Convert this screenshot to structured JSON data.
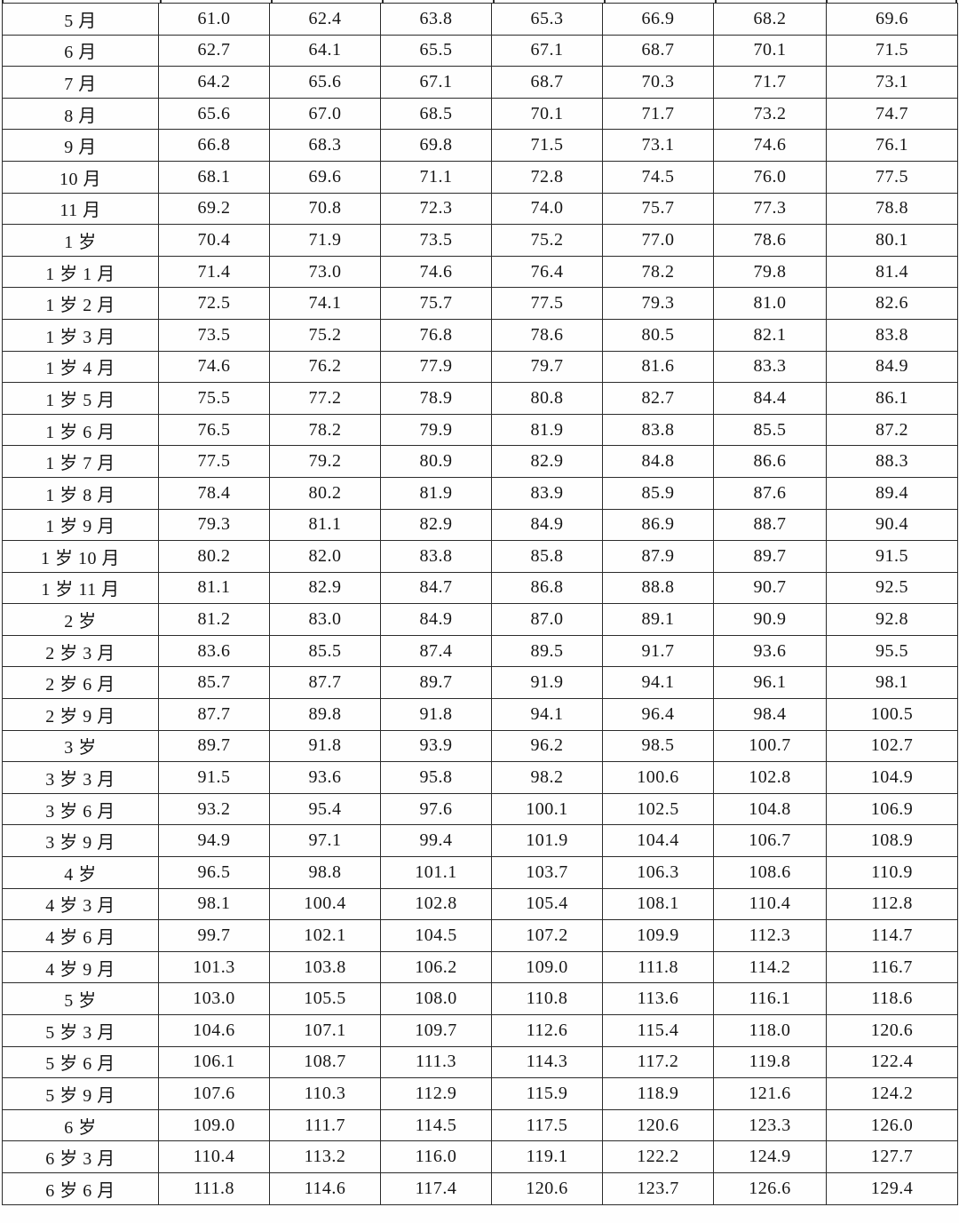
{
  "page": {
    "background_color": "#fefefe",
    "text_color": "#161616",
    "border_color": "#2b2b2b"
  },
  "table": {
    "description": "child growth standard table (age vs seven height-length percentile columns, cm), header rows cropped out of view",
    "rows": [
      {
        "label": "5 月",
        "values": [
          "61.0",
          "62.4",
          "63.8",
          "65.3",
          "66.9",
          "68.2",
          "69.6"
        ]
      },
      {
        "label": "6 月",
        "values": [
          "62.7",
          "64.1",
          "65.5",
          "67.1",
          "68.7",
          "70.1",
          "71.5"
        ]
      },
      {
        "label": "7 月",
        "values": [
          "64.2",
          "65.6",
          "67.1",
          "68.7",
          "70.3",
          "71.7",
          "73.1"
        ]
      },
      {
        "label": "8 月",
        "values": [
          "65.6",
          "67.0",
          "68.5",
          "70.1",
          "71.7",
          "73.2",
          "74.7"
        ]
      },
      {
        "label": "9 月",
        "values": [
          "66.8",
          "68.3",
          "69.8",
          "71.5",
          "73.1",
          "74.6",
          "76.1"
        ]
      },
      {
        "label": "10 月",
        "values": [
          "68.1",
          "69.6",
          "71.1",
          "72.8",
          "74.5",
          "76.0",
          "77.5"
        ]
      },
      {
        "label": "11 月",
        "values": [
          "69.2",
          "70.8",
          "72.3",
          "74.0",
          "75.7",
          "77.3",
          "78.8"
        ]
      },
      {
        "label": "1 岁",
        "values": [
          "70.4",
          "71.9",
          "73.5",
          "75.2",
          "77.0",
          "78.6",
          "80.1"
        ]
      },
      {
        "label": "1 岁 1 月",
        "values": [
          "71.4",
          "73.0",
          "74.6",
          "76.4",
          "78.2",
          "79.8",
          "81.4"
        ]
      },
      {
        "label": "1 岁 2 月",
        "values": [
          "72.5",
          "74.1",
          "75.7",
          "77.5",
          "79.3",
          "81.0",
          "82.6"
        ]
      },
      {
        "label": "1 岁 3 月",
        "values": [
          "73.5",
          "75.2",
          "76.8",
          "78.6",
          "80.5",
          "82.1",
          "83.8"
        ]
      },
      {
        "label": "1 岁 4 月",
        "values": [
          "74.6",
          "76.2",
          "77.9",
          "79.7",
          "81.6",
          "83.3",
          "84.9"
        ]
      },
      {
        "label": "1 岁 5 月",
        "values": [
          "75.5",
          "77.2",
          "78.9",
          "80.8",
          "82.7",
          "84.4",
          "86.1"
        ]
      },
      {
        "label": "1 岁 6 月",
        "values": [
          "76.5",
          "78.2",
          "79.9",
          "81.9",
          "83.8",
          "85.5",
          "87.2"
        ]
      },
      {
        "label": "1 岁 7 月",
        "values": [
          "77.5",
          "79.2",
          "80.9",
          "82.9",
          "84.8",
          "86.6",
          "88.3"
        ]
      },
      {
        "label": "1 岁 8 月",
        "values": [
          "78.4",
          "80.2",
          "81.9",
          "83.9",
          "85.9",
          "87.6",
          "89.4"
        ]
      },
      {
        "label": "1 岁 9 月",
        "values": [
          "79.3",
          "81.1",
          "82.9",
          "84.9",
          "86.9",
          "88.7",
          "90.4"
        ]
      },
      {
        "label": "1 岁 10 月",
        "values": [
          "80.2",
          "82.0",
          "83.8",
          "85.8",
          "87.9",
          "89.7",
          "91.5"
        ]
      },
      {
        "label": "1 岁 11 月",
        "values": [
          "81.1",
          "82.9",
          "84.7",
          "86.8",
          "88.8",
          "90.7",
          "92.5"
        ]
      },
      {
        "label": "2 岁",
        "values": [
          "81.2",
          "83.0",
          "84.9",
          "87.0",
          "89.1",
          "90.9",
          "92.8"
        ]
      },
      {
        "label": "2 岁 3 月",
        "values": [
          "83.6",
          "85.5",
          "87.4",
          "89.5",
          "91.7",
          "93.6",
          "95.5"
        ]
      },
      {
        "label": "2 岁 6 月",
        "values": [
          "85.7",
          "87.7",
          "89.7",
          "91.9",
          "94.1",
          "96.1",
          "98.1"
        ]
      },
      {
        "label": "2 岁 9 月",
        "values": [
          "87.7",
          "89.8",
          "91.8",
          "94.1",
          "96.4",
          "98.4",
          "100.5"
        ]
      },
      {
        "label": "3 岁",
        "values": [
          "89.7",
          "91.8",
          "93.9",
          "96.2",
          "98.5",
          "100.7",
          "102.7"
        ]
      },
      {
        "label": "3 岁 3 月",
        "values": [
          "91.5",
          "93.6",
          "95.8",
          "98.2",
          "100.6",
          "102.8",
          "104.9"
        ]
      },
      {
        "label": "3 岁 6 月",
        "values": [
          "93.2",
          "95.4",
          "97.6",
          "100.1",
          "102.5",
          "104.8",
          "106.9"
        ]
      },
      {
        "label": "3 岁 9 月",
        "values": [
          "94.9",
          "97.1",
          "99.4",
          "101.9",
          "104.4",
          "106.7",
          "108.9"
        ]
      },
      {
        "label": "4 岁",
        "values": [
          "96.5",
          "98.8",
          "101.1",
          "103.7",
          "106.3",
          "108.6",
          "110.9"
        ]
      },
      {
        "label": "4 岁 3 月",
        "values": [
          "98.1",
          "100.4",
          "102.8",
          "105.4",
          "108.1",
          "110.4",
          "112.8"
        ]
      },
      {
        "label": "4 岁 6 月",
        "values": [
          "99.7",
          "102.1",
          "104.5",
          "107.2",
          "109.9",
          "112.3",
          "114.7"
        ]
      },
      {
        "label": "4 岁 9 月",
        "values": [
          "101.3",
          "103.8",
          "106.2",
          "109.0",
          "111.8",
          "114.2",
          "116.7"
        ]
      },
      {
        "label": "5 岁",
        "values": [
          "103.0",
          "105.5",
          "108.0",
          "110.8",
          "113.6",
          "116.1",
          "118.6"
        ]
      },
      {
        "label": "5 岁 3 月",
        "values": [
          "104.6",
          "107.1",
          "109.7",
          "112.6",
          "115.4",
          "118.0",
          "120.6"
        ]
      },
      {
        "label": "5 岁 6 月",
        "values": [
          "106.1",
          "108.7",
          "111.3",
          "114.3",
          "117.2",
          "119.8",
          "122.4"
        ]
      },
      {
        "label": "5 岁 9 月",
        "values": [
          "107.6",
          "110.3",
          "112.9",
          "115.9",
          "118.9",
          "121.6",
          "124.2"
        ]
      },
      {
        "label": "6 岁",
        "values": [
          "109.0",
          "111.7",
          "114.5",
          "117.5",
          "120.6",
          "123.3",
          "126.0"
        ]
      },
      {
        "label": "6 岁 3 月",
        "values": [
          "110.4",
          "113.2",
          "116.0",
          "119.1",
          "122.2",
          "124.9",
          "127.7"
        ]
      },
      {
        "label": "6 岁 6 月",
        "values": [
          "111.8",
          "114.6",
          "117.4",
          "120.6",
          "123.7",
          "126.6",
          "129.4"
        ]
      }
    ]
  }
}
